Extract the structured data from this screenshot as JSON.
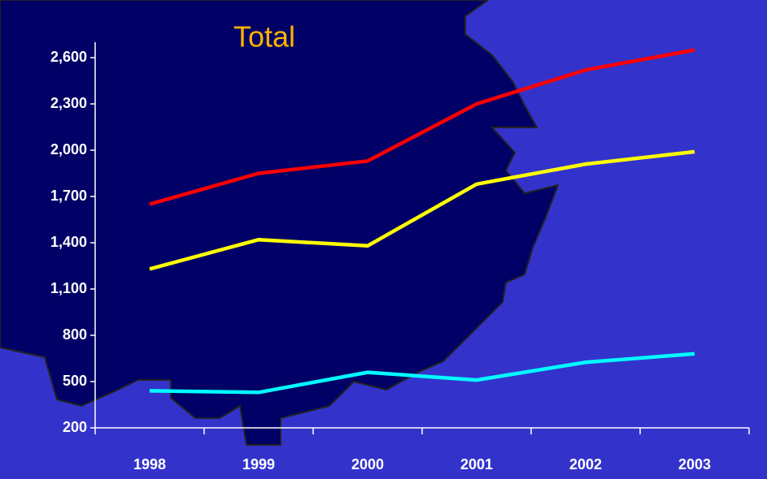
{
  "chart_data": {
    "type": "line",
    "title": "Total",
    "categories": [
      "1998",
      "1999",
      "2000",
      "2001",
      "2002",
      "2003"
    ],
    "series": [
      {
        "color": "#ff0000",
        "values": [
          1650,
          1850,
          1930,
          2300,
          2520,
          2650
        ]
      },
      {
        "color": "#ffff00",
        "values": [
          1230,
          1420,
          1380,
          1780,
          1910,
          1990
        ]
      },
      {
        "color": "#00ffff",
        "values": [
          440,
          430,
          560,
          510,
          625,
          680
        ]
      }
    ],
    "ylim": [
      200,
      2700
    ],
    "yticks": [
      200,
      500,
      800,
      {
        "value": 1100,
        "label": "1,100"
      },
      {
        "value": 1400,
        "label": "1,400"
      },
      {
        "value": 1700,
        "label": "1,700"
      },
      {
        "value": 2000,
        "label": "2,000"
      },
      {
        "value": 2300,
        "label": "2,300"
      },
      {
        "value": 2600,
        "label": "2,600"
      }
    ],
    "grid": false
  }
}
